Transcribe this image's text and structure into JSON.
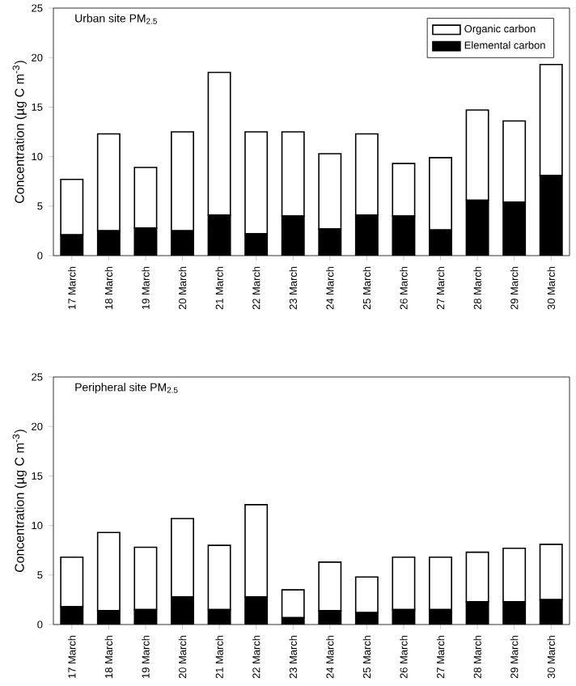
{
  "chart_data": [
    {
      "type": "bar",
      "title": "Urban site PM$_{2.5}$",
      "ylabel": "Concentration (µg C m$^{-3}$)",
      "stacked": true,
      "legend": "top right",
      "categories": [
        "17 March",
        "18 March",
        "19 March",
        "20 March",
        "21 March",
        "22 March",
        "23 March",
        "24 March",
        "25 March",
        "26 March",
        "27 March",
        "28 March",
        "29 March",
        "30 March"
      ],
      "ylim": [
        0,
        25
      ],
      "yticks": [
        0,
        5,
        10,
        15,
        20,
        25
      ],
      "series": [
        {
          "name": "Elemental carbon",
          "color": "#000000",
          "values": [
            2.1,
            2.5,
            2.8,
            2.5,
            4.1,
            2.2,
            4.0,
            2.7,
            4.1,
            4.0,
            2.6,
            5.6,
            5.4,
            8.1
          ]
        },
        {
          "name": "Organic carbon",
          "color": "#ffffff",
          "values": [
            5.6,
            9.8,
            6.1,
            10.0,
            14.4,
            10.3,
            8.5,
            7.6,
            8.2,
            5.3,
            7.3,
            9.1,
            8.2,
            11.2
          ]
        }
      ]
    },
    {
      "type": "bar",
      "title": "Peripheral site PM$_{2.5}$",
      "ylabel": "Concentration (µg C m$^{-3}$)",
      "stacked": true,
      "categories": [
        "17 March",
        "18 March",
        "19 March",
        "20 March",
        "21 March",
        "22 March",
        "23 March",
        "24 March",
        "25 March",
        "26 March",
        "27 March",
        "28 March",
        "29 March",
        "30 March"
      ],
      "ylim": [
        0,
        25
      ],
      "yticks": [
        0,
        5,
        10,
        15,
        20,
        25
      ],
      "series": [
        {
          "color": "#000000",
          "values": [
            1.8,
            1.4,
            1.5,
            2.8,
            1.5,
            2.8,
            0.7,
            1.4,
            1.2,
            1.5,
            1.5,
            2.3,
            2.3,
            2.5
          ]
        },
        {
          "color": "#ffffff",
          "values": [
            5.0,
            7.9,
            6.3,
            7.9,
            6.5,
            9.3,
            2.8,
            4.9,
            3.6,
            5.3,
            5.3,
            5.0,
            5.4,
            5.6
          ]
        }
      ]
    }
  ]
}
